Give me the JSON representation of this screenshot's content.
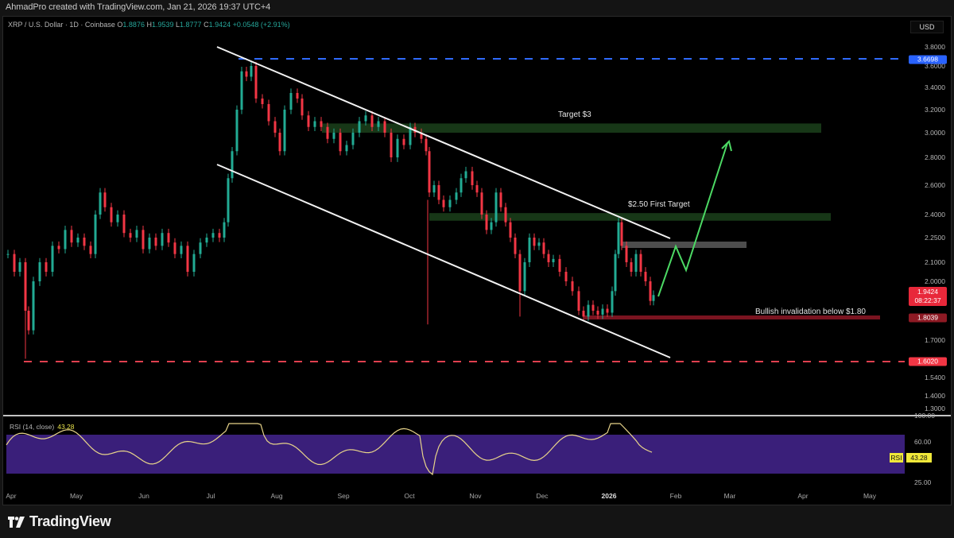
{
  "attribution": "AhmadPro created with TradingView.com, Jan 21, 2026 19:37 UTC+4",
  "legend": {
    "symbol": "XRP / U.S. Dollar · 1D · Coinbase",
    "open_label": "O",
    "open": "1.8876",
    "high_label": "H",
    "high": "1.9539",
    "low_label": "L",
    "low": "1.8777",
    "close_label": "C",
    "close": "1.9424",
    "change": "+0.0548 (+2.91%)"
  },
  "price_axis": {
    "currency": "USD",
    "ticks": [
      "3.8000",
      "3.6000",
      "3.4000",
      "3.2000",
      "3.0000",
      "2.8000",
      "2.6000",
      "2.4000",
      "2.2500",
      "2.1000",
      "2.0000",
      "1.7000",
      "1.5400",
      "1.4000",
      "1.3000"
    ],
    "tags": {
      "resistance_high": {
        "value": "3.6698",
        "color": "#2962ff"
      },
      "last_price": {
        "value": "1.9424",
        "countdown": "08:22:37",
        "color": "#e8283a"
      },
      "invalidation": {
        "value": "1.8039",
        "color": "#8e1a24"
      },
      "support_low": {
        "value": "1.6020",
        "color": "#f23645"
      }
    }
  },
  "annotations": {
    "target_3": "Target $3",
    "first_target": "$2.50 First Target",
    "invalidation": "Bullish invalidation below $1.80"
  },
  "rsi": {
    "label": "RSI (14, close)",
    "value": "43.28",
    "tag_label": "RSI",
    "ticks": [
      "100.00",
      "60.00",
      "25.00"
    ],
    "band_color": "#3a1f7a",
    "line_color": "#e8d48a"
  },
  "time_axis": {
    "labels": [
      "Apr",
      "May",
      "Jun",
      "Jul",
      "Aug",
      "Sep",
      "Oct",
      "Nov",
      "Dec",
      "2026",
      "Feb",
      "Mar",
      "Apr",
      "May"
    ]
  },
  "branding": {
    "logo_text": "TradingView"
  },
  "chart_data": {
    "type": "candlestick",
    "title": "XRP / U.S. Dollar · 1D · Coinbase",
    "xlabel": "",
    "ylabel": "USD",
    "x": [
      "Apr",
      "May",
      "Jun",
      "Jul",
      "Aug",
      "Sep",
      "Oct",
      "Nov",
      "Dec",
      "2026",
      "Feb",
      "Mar",
      "Apr",
      "May"
    ],
    "ylim": [
      1.3,
      3.8
    ],
    "y_scale": "log",
    "grid": false,
    "approx_monthly_closes": {
      "Apr": 2.1,
      "May": 2.4,
      "Jun": 2.2,
      "Jul": 2.45,
      "Aug": 3.1,
      "Sep": 2.95,
      "Oct": 2.95,
      "Nov": 2.4,
      "Dec": 2.1,
      "2026": 2.0
    },
    "key_levels": {
      "all_time_local_high": 3.6698,
      "target_3": 3.0,
      "first_target": 2.5,
      "intermediate_resistance": 2.25,
      "last_close": 1.9424,
      "invalidation": 1.8039,
      "support_low": 1.602
    },
    "descending_channel": {
      "upper": [
        [
          "Jul",
          3.75
        ],
        [
          "Jan 2026 end",
          2.25
        ]
      ],
      "lower": [
        [
          "Jul",
          2.75
        ],
        [
          "Jan 2026 end",
          1.6
        ]
      ]
    },
    "projection_path": [
      1.93,
      2.22,
      2.08,
      2.95
    ],
    "rsi_series": {
      "name": "RSI (14, close)",
      "last": 43.28,
      "upper_band": 60,
      "lower_band": 25,
      "range": [
        0,
        100
      ]
    }
  }
}
